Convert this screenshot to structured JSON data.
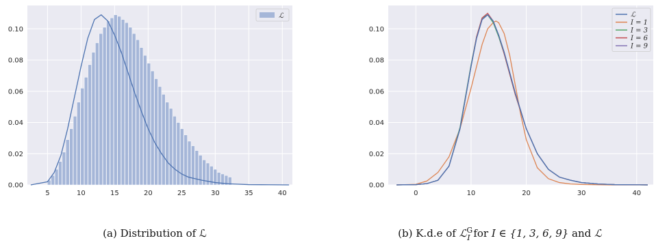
{
  "chart_data": [
    {
      "type": "bar",
      "subtype": "histogram-with-kde",
      "caption": "(a) Distribution of ℒ",
      "xlim": [
        2,
        41.5
      ],
      "ylim": [
        0,
        0.115
      ],
      "xticks": [
        5,
        10,
        15,
        20,
        25,
        30,
        35,
        40
      ],
      "yticks": [
        0.0,
        0.02,
        0.04,
        0.06,
        0.08,
        0.1
      ],
      "xticklabels": [
        "5",
        "10",
        "15",
        "20",
        "25",
        "30",
        "35",
        "40"
      ],
      "yticklabels": [
        "0.00",
        "0.02",
        "0.04",
        "0.06",
        "0.08",
        "0.10"
      ],
      "grid": true,
      "legend": {
        "position": "top-right",
        "entries": [
          "ℒ"
        ]
      },
      "bars_color": "#a5b6d8",
      "kde_color": "#4c72b0",
      "bin_width": 0.55,
      "bin_start": 5.0,
      "hist_values": [
        0.003,
        0.006,
        0.01,
        0.015,
        0.021,
        0.029,
        0.036,
        0.044,
        0.053,
        0.062,
        0.069,
        0.077,
        0.085,
        0.091,
        0.097,
        0.101,
        0.105,
        0.107,
        0.109,
        0.108,
        0.106,
        0.104,
        0.101,
        0.097,
        0.093,
        0.088,
        0.083,
        0.078,
        0.073,
        0.068,
        0.063,
        0.058,
        0.053,
        0.049,
        0.044,
        0.04,
        0.036,
        0.032,
        0.028,
        0.025,
        0.022,
        0.019,
        0.016,
        0.014,
        0.012,
        0.01,
        0.008,
        0.007,
        0.006,
        0.005
      ],
      "kde": {
        "x": [
          2.5,
          5,
          6,
          7,
          8,
          9,
          10,
          11,
          12,
          13,
          14,
          15,
          16,
          17,
          18,
          19,
          20,
          21,
          22,
          23,
          24,
          25,
          26,
          27,
          28,
          30,
          32,
          35,
          38,
          41
        ],
        "y": [
          0.0,
          0.002,
          0.008,
          0.019,
          0.036,
          0.056,
          0.076,
          0.094,
          0.106,
          0.109,
          0.105,
          0.096,
          0.085,
          0.072,
          0.059,
          0.047,
          0.036,
          0.027,
          0.02,
          0.014,
          0.01,
          0.007,
          0.005,
          0.004,
          0.003,
          0.0015,
          0.0007,
          0.0002,
          0.0001,
          0.0
        ]
      }
    },
    {
      "type": "line",
      "subtype": "kde",
      "caption_parts": [
        "(b) K.d.e of ",
        "ℒ",
        "G",
        "I",
        " for ",
        "I ∈ {1, 3, 6, 9}",
        " and ",
        "ℒ"
      ],
      "xlim": [
        -5,
        43
      ],
      "ylim": [
        0,
        0.115
      ],
      "xticks": [
        0,
        10,
        20,
        30,
        40
      ],
      "yticks": [
        0.0,
        0.02,
        0.04,
        0.06,
        0.08,
        0.1
      ],
      "xticklabels": [
        "0",
        "10",
        "20",
        "30",
        "40"
      ],
      "yticklabels": [
        "0.00",
        "0.02",
        "0.04",
        "0.06",
        "0.08",
        "0.10"
      ],
      "grid": true,
      "legend": {
        "position": "top-right"
      },
      "series": [
        {
          "name": "ℒ",
          "color": "#4c72b0",
          "x": [
            -3.5,
            0,
            2,
            4,
            6,
            8,
            10,
            11,
            12,
            13,
            14,
            15,
            16,
            18,
            20,
            22,
            24,
            26,
            28,
            30,
            33,
            36,
            39,
            42
          ],
          "y": [
            0.0,
            0.0002,
            0.0008,
            0.003,
            0.012,
            0.036,
            0.076,
            0.094,
            0.106,
            0.109,
            0.105,
            0.096,
            0.085,
            0.059,
            0.036,
            0.02,
            0.01,
            0.005,
            0.003,
            0.0015,
            0.0006,
            0.0002,
            0.0001,
            0.0
          ]
        },
        {
          "name": "I = 1",
          "color": "#dd8452",
          "x": [
            -3.5,
            0,
            2,
            4,
            6,
            8,
            10,
            12,
            13,
            14,
            14.5,
            15,
            16,
            17,
            18,
            19,
            20,
            22,
            24,
            26,
            28,
            30,
            33,
            36,
            39,
            42
          ],
          "y": [
            0.0,
            0.0004,
            0.0025,
            0.008,
            0.018,
            0.036,
            0.062,
            0.09,
            0.1,
            0.104,
            0.105,
            0.104,
            0.097,
            0.083,
            0.064,
            0.045,
            0.029,
            0.011,
            0.004,
            0.0015,
            0.0006,
            0.0003,
            0.0001,
            0.0,
            0.0,
            0.0
          ]
        },
        {
          "name": "I = 3",
          "color": "#55a868",
          "x": [
            -3.5,
            0,
            2,
            4,
            6,
            8,
            10,
            11,
            12,
            13,
            14,
            15,
            16,
            18,
            20,
            22,
            24,
            26,
            28,
            30,
            33,
            36,
            39,
            42
          ],
          "y": [
            0.0,
            0.0002,
            0.0008,
            0.003,
            0.012,
            0.037,
            0.077,
            0.095,
            0.107,
            0.109,
            0.104,
            0.095,
            0.084,
            0.058,
            0.036,
            0.02,
            0.01,
            0.005,
            0.003,
            0.0015,
            0.0006,
            0.0002,
            0.0001,
            0.0
          ]
        },
        {
          "name": "I = 6",
          "color": "#c44e52",
          "x": [
            -3.5,
            0,
            2,
            4,
            6,
            8,
            10,
            11,
            12,
            13,
            14,
            15,
            16,
            18,
            20,
            22,
            24,
            26,
            28,
            30,
            33,
            36,
            39,
            42
          ],
          "y": [
            0.0,
            0.0002,
            0.0008,
            0.003,
            0.012,
            0.036,
            0.076,
            0.095,
            0.107,
            0.11,
            0.105,
            0.096,
            0.084,
            0.058,
            0.036,
            0.02,
            0.01,
            0.005,
            0.003,
            0.0015,
            0.0006,
            0.0002,
            0.0001,
            0.0
          ]
        },
        {
          "name": "I = 9",
          "color": "#8172b3",
          "x": [
            -3.5,
            0,
            2,
            4,
            6,
            8,
            10,
            11,
            12,
            13,
            14,
            15,
            16,
            18,
            20,
            22,
            24,
            26,
            28,
            30,
            33,
            36,
            39,
            42
          ],
          "y": [
            0.0,
            0.0002,
            0.0008,
            0.003,
            0.012,
            0.036,
            0.076,
            0.094,
            0.106,
            0.109,
            0.105,
            0.096,
            0.085,
            0.059,
            0.036,
            0.02,
            0.01,
            0.005,
            0.003,
            0.0015,
            0.0006,
            0.0002,
            0.0001,
            0.0
          ]
        }
      ]
    }
  ],
  "colors": {
    "axes_bg": "#eaeaf2",
    "grid": "#ffffff"
  }
}
